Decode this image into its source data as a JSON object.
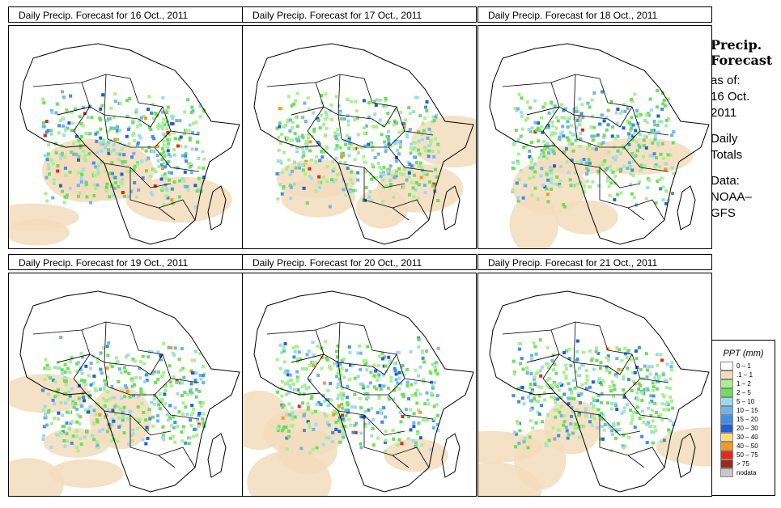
{
  "panels": [
    {
      "title": "Daily Precip. Forecast for  16 Oct., 2011"
    },
    {
      "title": "Daily Precip. Forecast for  17 Oct., 2011"
    },
    {
      "title": "Daily Precip. Forecast for  18 Oct., 2011"
    },
    {
      "title": "Daily Precip. Forecast for  19 Oct., 2011"
    },
    {
      "title": "Daily Precip. Forecast for  20 Oct., 2011"
    },
    {
      "title": "Daily Precip. Forecast for  21 Oct., 2011"
    }
  ],
  "side": {
    "title_line1": "Precip.",
    "title_line2": "Forecast",
    "asof_line1": "as of:",
    "asof_line2": "16 Oct.",
    "asof_line3": "2011",
    "totals_line1": "Daily",
    "totals_line2": "Totals",
    "data_line1": "Data:",
    "data_line2": "NOAA–",
    "data_line3": "GFS"
  },
  "legend": {
    "title": "PPT (mm)",
    "items": [
      {
        "label": "0 – 1",
        "color": "#ffffff"
      },
      {
        "label": ".1 – 1",
        "color": "#f2dcbc"
      },
      {
        "label": "1 – 2",
        "color": "#a8f090"
      },
      {
        "label": "2 – 5",
        "color": "#6ede5c"
      },
      {
        "label": "5 – 10",
        "color": "#9ed8f5"
      },
      {
        "label": "10 – 15",
        "color": "#6fb4ee"
      },
      {
        "label": "15 – 20",
        "color": "#3f8fe6"
      },
      {
        "label": "20 – 30",
        "color": "#1f5fd8"
      },
      {
        "label": "30 – 40",
        "color": "#f7e07a"
      },
      {
        "label": "40 – 50",
        "color": "#f59a1c"
      },
      {
        "label": "50 – 75",
        "color": "#e8251c"
      },
      {
        "label": "> 75",
        "color": "#9c2a18"
      },
      {
        "label": "nodata",
        "color": "#c8c8c8"
      }
    ]
  }
}
